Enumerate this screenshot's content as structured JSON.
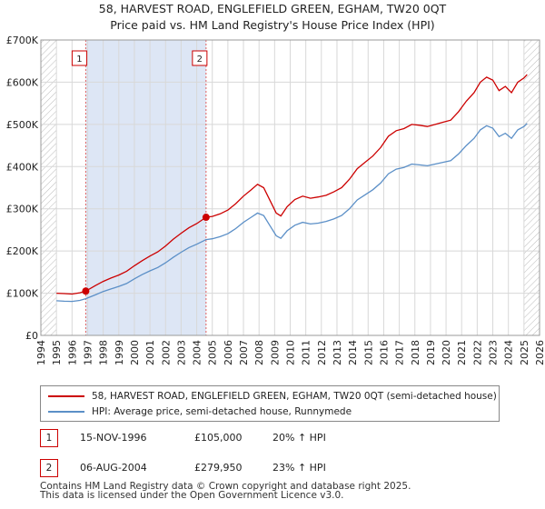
{
  "header": {
    "title": "58, HARVEST ROAD, ENGLEFIELD GREEN, EGHAM, TW20 0QT",
    "subtitle": "Price paid vs. HM Land Registry's House Price Index (HPI)"
  },
  "chart_data": {
    "type": "line",
    "title": "58, HARVEST ROAD, ENGLEFIELD GREEN, EGHAM, TW20 0QT",
    "subtitle": "Price paid vs. HM Land Registry's House Price Index (HPI)",
    "xlabel": "",
    "ylabel": "",
    "xlim": [
      1994,
      2026
    ],
    "ylim": [
      0,
      700000
    ],
    "x_ticks": [
      "1994",
      "1995",
      "1996",
      "1997",
      "1998",
      "1999",
      "2000",
      "2001",
      "2002",
      "2003",
      "2004",
      "2005",
      "2006",
      "2007",
      "2008",
      "2009",
      "2010",
      "2011",
      "2012",
      "2013",
      "2014",
      "2015",
      "2016",
      "2017",
      "2018",
      "2019",
      "2020",
      "2021",
      "2022",
      "2023",
      "2024",
      "2025",
      "2026"
    ],
    "y_ticks": [
      {
        "value": 0,
        "label": "£0"
      },
      {
        "value": 100000,
        "label": "£100K"
      },
      {
        "value": 200000,
        "label": "£200K"
      },
      {
        "value": 300000,
        "label": "£300K"
      },
      {
        "value": 400000,
        "label": "£400K"
      },
      {
        "value": 500000,
        "label": "£500K"
      },
      {
        "value": 600000,
        "label": "£600K"
      },
      {
        "value": 700000,
        "label": "£700K"
      }
    ],
    "shaded_range": [
      1996.88,
      2004.6
    ],
    "hatched_before": 1995.0,
    "hatched_after": 2025.0,
    "series": [
      {
        "name": "58, HARVEST ROAD, ENGLEFIELD GREEN, EGHAM, TW20 0QT (semi-detached house)",
        "color": "#cc0000",
        "points": [
          [
            1995.0,
            100000
          ],
          [
            1995.5,
            99000
          ],
          [
            1996.0,
            98000
          ],
          [
            1996.5,
            101000
          ],
          [
            1996.88,
            105000
          ],
          [
            1997.5,
            118000
          ],
          [
            1998.0,
            128000
          ],
          [
            1998.5,
            136000
          ],
          [
            1999.0,
            143000
          ],
          [
            1999.5,
            152000
          ],
          [
            2000.0,
            165000
          ],
          [
            2000.5,
            177000
          ],
          [
            2001.0,
            188000
          ],
          [
            2001.5,
            198000
          ],
          [
            2002.0,
            212000
          ],
          [
            2002.5,
            228000
          ],
          [
            2003.0,
            242000
          ],
          [
            2003.5,
            255000
          ],
          [
            2004.0,
            265000
          ],
          [
            2004.6,
            279950
          ],
          [
            2005.0,
            282000
          ],
          [
            2005.5,
            288000
          ],
          [
            2006.0,
            297000
          ],
          [
            2006.5,
            312000
          ],
          [
            2007.0,
            330000
          ],
          [
            2007.5,
            345000
          ],
          [
            2007.9,
            358000
          ],
          [
            2008.3,
            350000
          ],
          [
            2008.7,
            320000
          ],
          [
            2009.1,
            290000
          ],
          [
            2009.4,
            283000
          ],
          [
            2009.8,
            305000
          ],
          [
            2010.3,
            322000
          ],
          [
            2010.8,
            330000
          ],
          [
            2011.3,
            325000
          ],
          [
            2011.8,
            328000
          ],
          [
            2012.3,
            332000
          ],
          [
            2012.8,
            340000
          ],
          [
            2013.3,
            350000
          ],
          [
            2013.8,
            370000
          ],
          [
            2014.3,
            395000
          ],
          [
            2014.8,
            410000
          ],
          [
            2015.3,
            425000
          ],
          [
            2015.8,
            445000
          ],
          [
            2016.3,
            472000
          ],
          [
            2016.8,
            485000
          ],
          [
            2017.3,
            490000
          ],
          [
            2017.8,
            500000
          ],
          [
            2018.3,
            498000
          ],
          [
            2018.8,
            495000
          ],
          [
            2019.3,
            500000
          ],
          [
            2019.8,
            505000
          ],
          [
            2020.3,
            510000
          ],
          [
            2020.8,
            530000
          ],
          [
            2021.3,
            555000
          ],
          [
            2021.8,
            575000
          ],
          [
            2022.2,
            600000
          ],
          [
            2022.6,
            612000
          ],
          [
            2023.0,
            605000
          ],
          [
            2023.4,
            580000
          ],
          [
            2023.8,
            590000
          ],
          [
            2024.2,
            575000
          ],
          [
            2024.6,
            600000
          ],
          [
            2025.0,
            610000
          ],
          [
            2025.2,
            618000
          ]
        ]
      },
      {
        "name": "HPI: Average price, semi-detached house, Runnymede",
        "color": "#5b8fc7",
        "points": [
          [
            1995.0,
            82000
          ],
          [
            1995.5,
            81000
          ],
          [
            1996.0,
            80500
          ],
          [
            1996.5,
            83000
          ],
          [
            1996.88,
            87000
          ],
          [
            1997.5,
            96000
          ],
          [
            1998.0,
            104000
          ],
          [
            1998.5,
            110000
          ],
          [
            1999.0,
            116000
          ],
          [
            1999.5,
            123000
          ],
          [
            2000.0,
            134000
          ],
          [
            2000.5,
            144000
          ],
          [
            2001.0,
            153000
          ],
          [
            2001.5,
            161000
          ],
          [
            2002.0,
            172000
          ],
          [
            2002.5,
            185000
          ],
          [
            2003.0,
            197000
          ],
          [
            2003.5,
            208000
          ],
          [
            2004.0,
            216000
          ],
          [
            2004.6,
            227000
          ],
          [
            2005.0,
            229000
          ],
          [
            2005.5,
            234000
          ],
          [
            2006.0,
            241000
          ],
          [
            2006.5,
            253000
          ],
          [
            2007.0,
            268000
          ],
          [
            2007.5,
            280000
          ],
          [
            2007.9,
            290000
          ],
          [
            2008.3,
            284000
          ],
          [
            2008.7,
            260000
          ],
          [
            2009.1,
            236000
          ],
          [
            2009.4,
            230000
          ],
          [
            2009.8,
            248000
          ],
          [
            2010.3,
            261000
          ],
          [
            2010.8,
            268000
          ],
          [
            2011.3,
            264000
          ],
          [
            2011.8,
            266000
          ],
          [
            2012.3,
            270000
          ],
          [
            2012.8,
            276000
          ],
          [
            2013.3,
            284000
          ],
          [
            2013.8,
            300000
          ],
          [
            2014.3,
            321000
          ],
          [
            2014.8,
            333000
          ],
          [
            2015.3,
            345000
          ],
          [
            2015.8,
            361000
          ],
          [
            2016.3,
            383000
          ],
          [
            2016.8,
            394000
          ],
          [
            2017.3,
            398000
          ],
          [
            2017.8,
            406000
          ],
          [
            2018.3,
            404000
          ],
          [
            2018.8,
            402000
          ],
          [
            2019.3,
            406000
          ],
          [
            2019.8,
            410000
          ],
          [
            2020.3,
            414000
          ],
          [
            2020.8,
            430000
          ],
          [
            2021.3,
            450000
          ],
          [
            2021.8,
            467000
          ],
          [
            2022.2,
            487000
          ],
          [
            2022.6,
            497000
          ],
          [
            2023.0,
            491000
          ],
          [
            2023.4,
            471000
          ],
          [
            2023.8,
            479000
          ],
          [
            2024.2,
            467000
          ],
          [
            2024.6,
            487000
          ],
          [
            2025.0,
            495000
          ],
          [
            2025.2,
            502000
          ]
        ]
      }
    ],
    "sales": [
      {
        "label": "1",
        "x": 1996.88,
        "y": 105000
      },
      {
        "label": "2",
        "x": 2004.6,
        "y": 279950
      }
    ]
  },
  "legend": {
    "items": [
      {
        "label": "58, HARVEST ROAD, ENGLEFIELD GREEN, EGHAM, TW20 0QT (semi-detached house)",
        "color": "#cc0000"
      },
      {
        "label": "HPI: Average price, semi-detached house, Runnymede",
        "color": "#5b8fc7"
      }
    ]
  },
  "transactions": [
    {
      "num": "1",
      "date": "15-NOV-1996",
      "price": "£105,000",
      "hpi": "20% ↑ HPI"
    },
    {
      "num": "2",
      "date": "06-AUG-2004",
      "price": "£279,950",
      "hpi": "23% ↑ HPI"
    }
  ],
  "footer": {
    "line1": "Contains HM Land Registry data © Crown copyright and database right 2025.",
    "line2": "This data is licensed under the Open Government Licence v3.0."
  }
}
